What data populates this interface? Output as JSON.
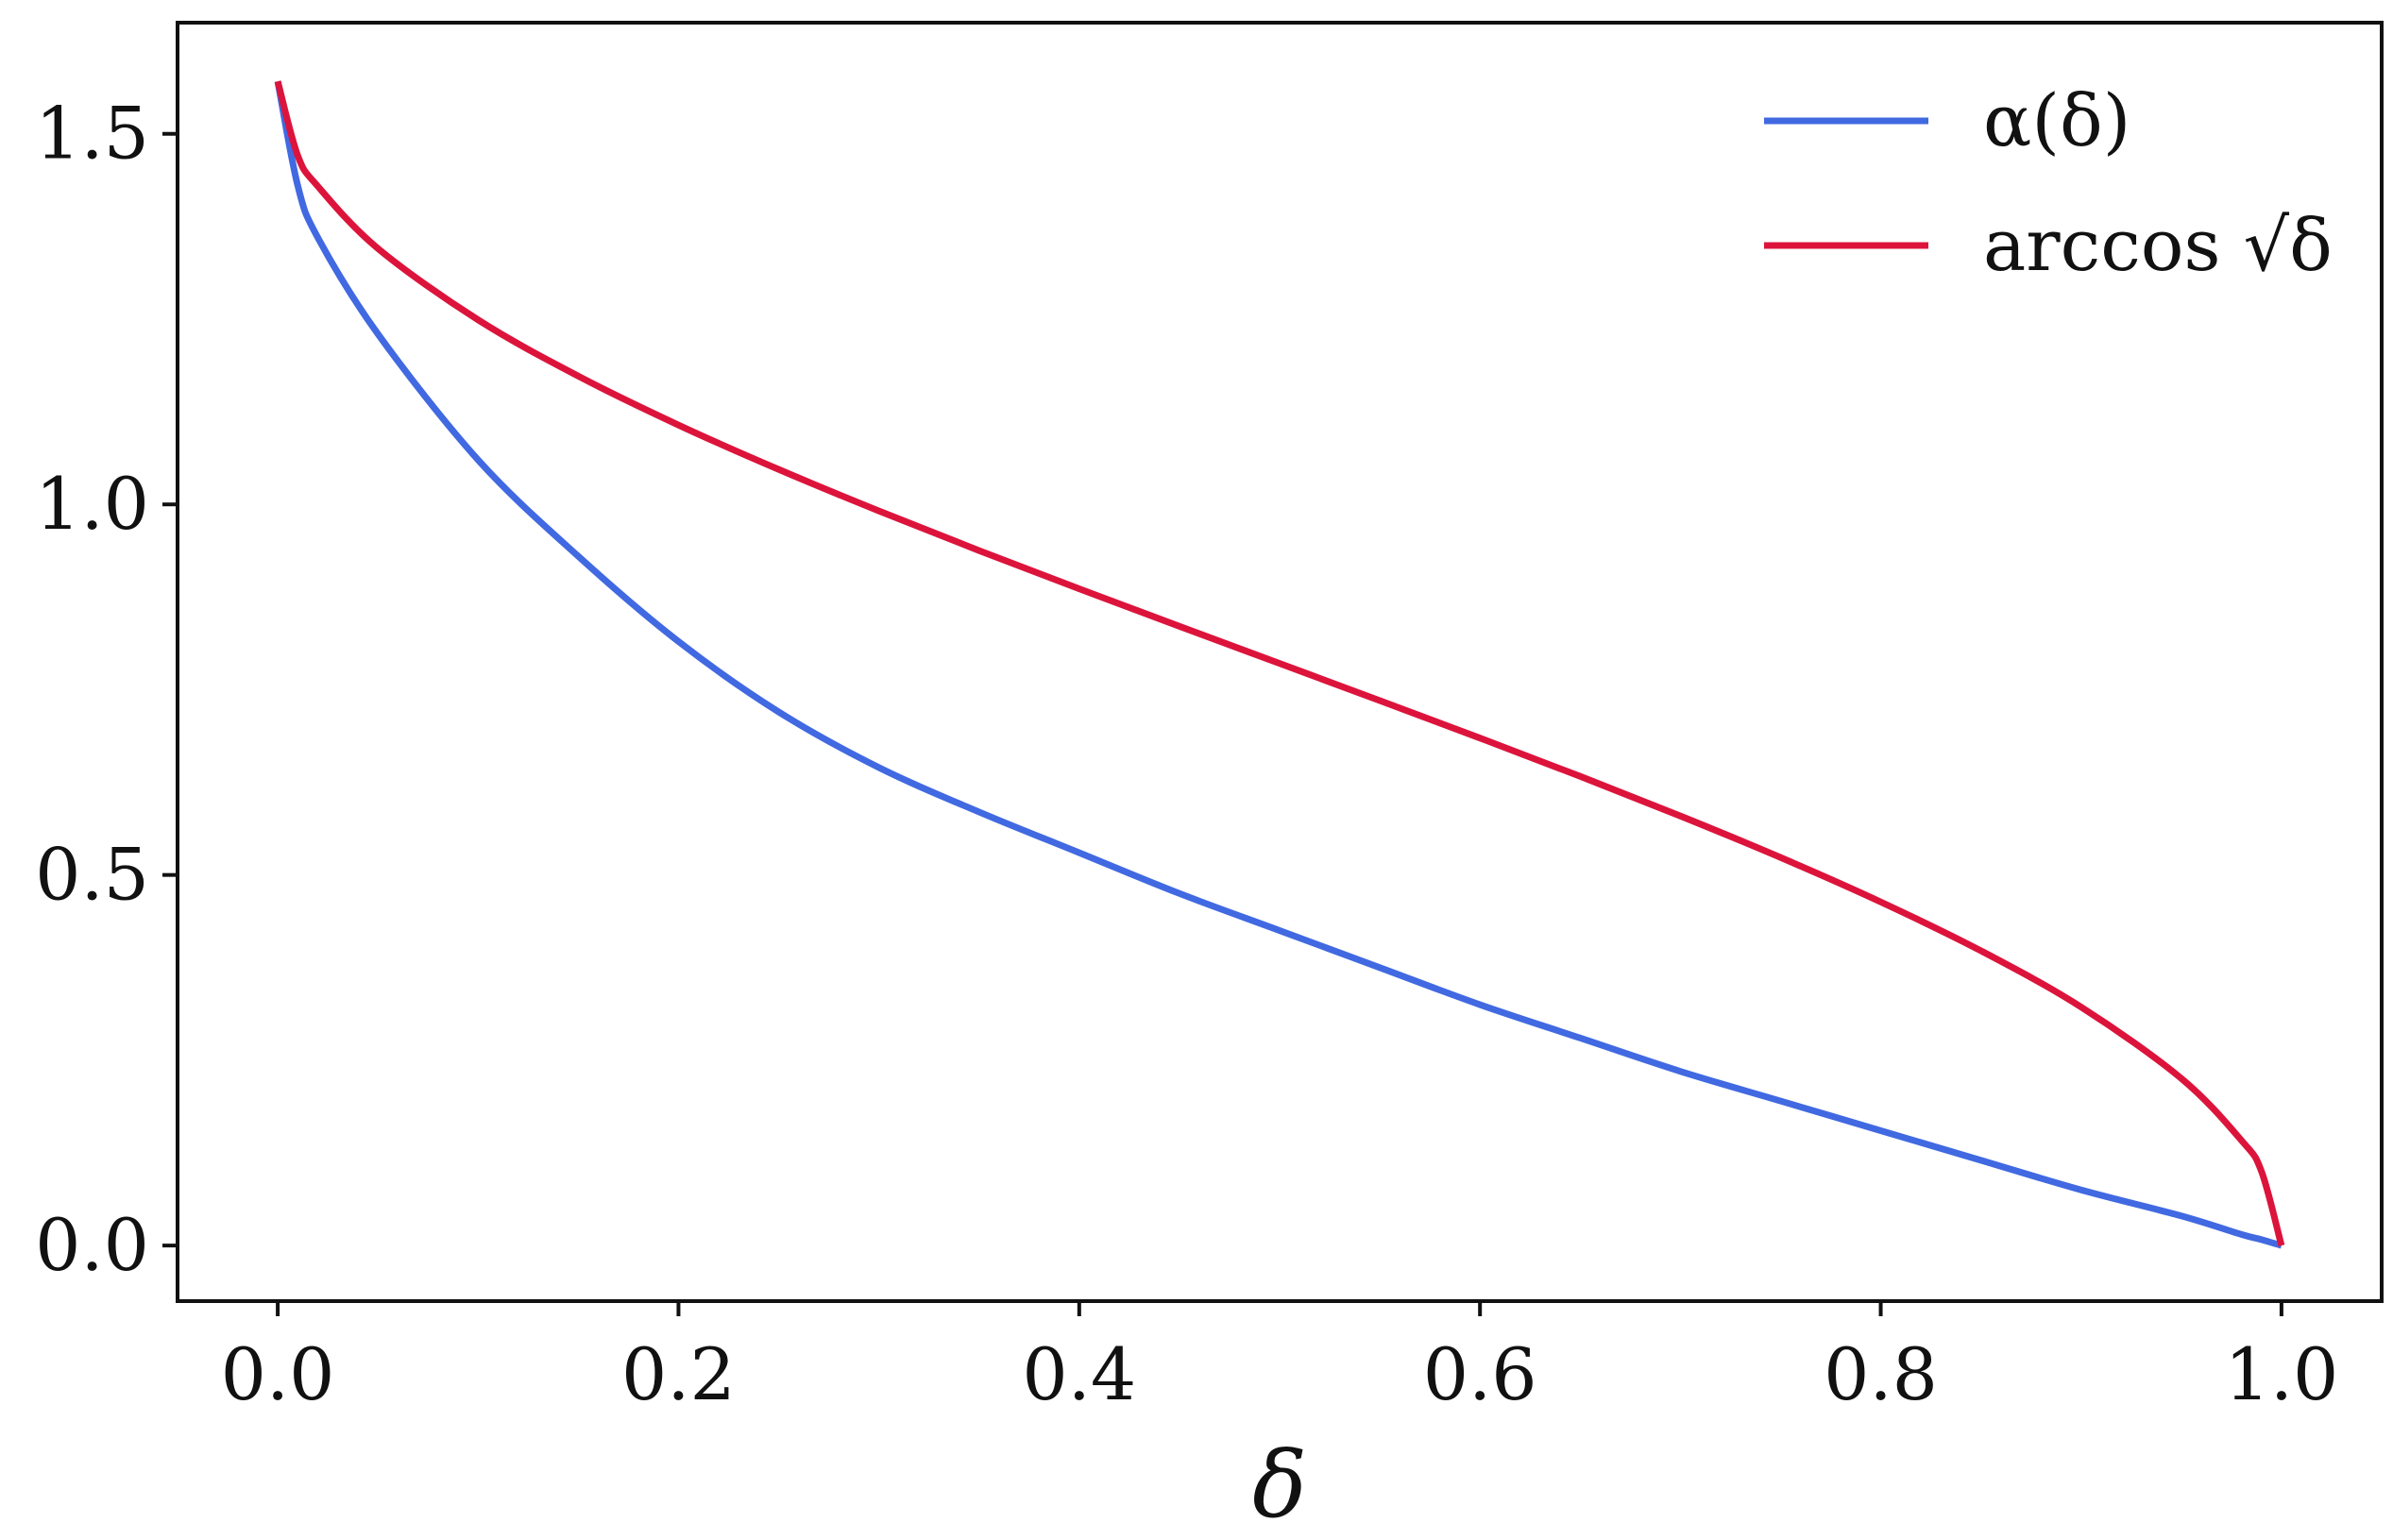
{
  "chart_data": {
    "type": "line",
    "title": "",
    "xlabel": "δ",
    "ylabel": "",
    "xlim": [
      -0.05,
      1.05
    ],
    "ylim": [
      -0.075,
      1.65
    ],
    "grid": false,
    "legend_position": "top-right",
    "x_ticks": [
      "0.0",
      "0.2",
      "0.4",
      "0.6",
      "0.8",
      "1.0"
    ],
    "y_ticks": [
      "0.0",
      "0.5",
      "1.0",
      "1.5"
    ],
    "x": [
      0.0,
      0.01,
      0.02,
      0.05,
      0.1,
      0.15,
      0.2,
      0.25,
      0.3,
      0.35,
      0.4,
      0.45,
      0.5,
      0.55,
      0.6,
      0.65,
      0.7,
      0.75,
      0.8,
      0.85,
      0.9,
      0.95,
      0.98,
      0.99,
      1.0
    ],
    "series": [
      {
        "name": "α(δ)",
        "color": "#4169e1",
        "values": [
          1.5708,
          1.43,
          1.36,
          1.23,
          1.06,
          0.93,
          0.815,
          0.72,
          0.645,
          0.585,
          0.53,
          0.475,
          0.425,
          0.375,
          0.325,
          0.28,
          0.235,
          0.195,
          0.155,
          0.115,
          0.075,
          0.04,
          0.015,
          0.008,
          0.0
        ]
      },
      {
        "name": "arccos √δ",
        "color": "#dc143c",
        "values": [
          1.5708,
          1.4706,
          1.4293,
          1.3453,
          1.249,
          1.1731,
          1.1071,
          1.0472,
          0.9912,
          0.9377,
          0.8861,
          0.8355,
          0.7854,
          0.7353,
          0.6847,
          0.6331,
          0.5796,
          0.5236,
          0.4636,
          0.3977,
          0.3218,
          0.2255,
          0.1419,
          0.1002,
          0.0
        ]
      }
    ]
  }
}
